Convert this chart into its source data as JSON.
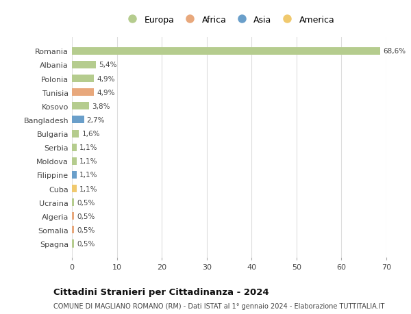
{
  "countries": [
    "Romania",
    "Albania",
    "Polonia",
    "Tunisia",
    "Kosovo",
    "Bangladesh",
    "Bulgaria",
    "Serbia",
    "Moldova",
    "Filippine",
    "Cuba",
    "Ucraina",
    "Algeria",
    "Somalia",
    "Spagna"
  ],
  "values": [
    68.6,
    5.4,
    4.9,
    4.9,
    3.8,
    2.7,
    1.6,
    1.1,
    1.1,
    1.1,
    1.1,
    0.5,
    0.5,
    0.5,
    0.5
  ],
  "labels": [
    "68,6%",
    "5,4%",
    "4,9%",
    "4,9%",
    "3,8%",
    "2,7%",
    "1,6%",
    "1,1%",
    "1,1%",
    "1,1%",
    "1,1%",
    "0,5%",
    "0,5%",
    "0,5%",
    "0,5%"
  ],
  "continents": [
    "Europa",
    "Europa",
    "Europa",
    "Africa",
    "Europa",
    "Asia",
    "Europa",
    "Europa",
    "Europa",
    "Asia",
    "America",
    "Europa",
    "Africa",
    "Africa",
    "Europa"
  ],
  "continent_colors": {
    "Europa": "#b5cc8e",
    "Africa": "#e8a87c",
    "Asia": "#6a9fca",
    "America": "#f0c96e"
  },
  "legend_order": [
    "Europa",
    "Africa",
    "Asia",
    "America"
  ],
  "title": "Cittadini Stranieri per Cittadinanza - 2024",
  "subtitle": "COMUNE DI MAGLIANO ROMANO (RM) - Dati ISTAT al 1° gennaio 2024 - Elaborazione TUTTITALIA.IT",
  "xlim": [
    0,
    70
  ],
  "xticks": [
    0,
    10,
    20,
    30,
    40,
    50,
    60,
    70
  ],
  "bg_color": "#ffffff",
  "grid_color": "#dddddd",
  "bar_height": 0.55
}
